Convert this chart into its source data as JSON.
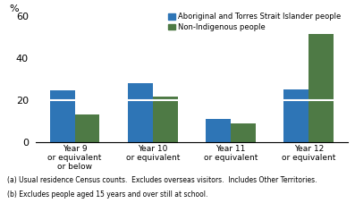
{
  "categories": [
    "Year 9\nor equivalent\nor below",
    "Year 10\nor equivalent",
    "Year 11\nor equivalent",
    "Year 12\nor equivalent"
  ],
  "aboriginal_values": [
    24.5,
    28.0,
    11.0,
    25.0
  ],
  "nonindigenous_values": [
    13.0,
    21.5,
    9.0,
    51.5
  ],
  "aboriginal_lower": [
    20.0,
    20.0,
    0,
    20.0
  ],
  "nonindigenous_lower": [
    0,
    20.0,
    0,
    20.0
  ],
  "aboriginal_color": "#2E75B6",
  "nonindigenous_color": "#4E7A45",
  "aboriginal_label": "Aboriginal and Torres Strait Islander people",
  "nonindigenous_label": "Non-Indigenous people",
  "ylabel": "%",
  "ylim": [
    0,
    60
  ],
  "yticks": [
    0,
    20,
    40,
    60
  ],
  "bar_width": 0.32,
  "footnote1": "(a) Usual residence Census counts.  Excludes overseas visitors.  Includes Other Territories.",
  "footnote2": "(b) Excludes people aged 15 years and over still at school."
}
